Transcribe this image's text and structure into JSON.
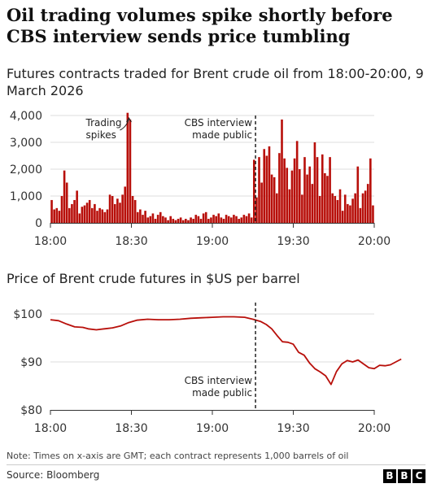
{
  "header": {
    "title": "Oil trading volumes spike shortly before CBS interview sends price tumbling"
  },
  "footer": {
    "note": "Note: Times on x-axis are GMT; each contract represents 1,000 barrels of oil",
    "source": "Source: Bloomberg",
    "logo": [
      "B",
      "B",
      "C"
    ]
  },
  "colors": {
    "bar": "#b80f0a",
    "line": "#b80f0a",
    "grid": "#dddddd",
    "event": "#222222"
  },
  "chart_data": [
    {
      "type": "bar",
      "title": "Futures contracts traded for Brent crude oil from 18:00-20:00, 9 March 2026",
      "xlabel": "",
      "ylabel": "",
      "x_unit": "minute",
      "x_range": [
        "18:00",
        "20:00"
      ],
      "xticks": [
        "18:00",
        "18:30",
        "19:00",
        "19:30",
        "20:00"
      ],
      "ylim": [
        0,
        4000
      ],
      "yticks": [
        0,
        1000,
        2000,
        3000,
        4000
      ],
      "ytick_labels": [
        "0",
        "1,000",
        "2,000",
        "3,000",
        "4,000"
      ],
      "grid": true,
      "values": [
        850,
        500,
        550,
        450,
        1000,
        1950,
        1500,
        550,
        700,
        850,
        1200,
        350,
        600,
        650,
        750,
        850,
        550,
        700,
        450,
        550,
        500,
        400,
        500,
        1050,
        1000,
        700,
        900,
        750,
        1050,
        1350,
        4100,
        3850,
        1000,
        850,
        400,
        500,
        300,
        450,
        200,
        250,
        350,
        150,
        300,
        400,
        250,
        200,
        100,
        250,
        150,
        100,
        150,
        200,
        100,
        150,
        100,
        200,
        150,
        300,
        250,
        150,
        350,
        400,
        150,
        200,
        300,
        250,
        350,
        200,
        150,
        300,
        250,
        200,
        300,
        250,
        150,
        200,
        300,
        250,
        350,
        200,
        2350,
        950,
        2450,
        1500,
        2750,
        2500,
        2850,
        1800,
        1700,
        1100,
        2600,
        3850,
        2400,
        2050,
        1250,
        1950,
        2400,
        3050,
        2000,
        1050,
        2450,
        1800,
        2100,
        1450,
        3000,
        2450,
        1000,
        2550,
        1850,
        1750,
        2450,
        1100,
        1000,
        850,
        1250,
        450,
        1050,
        700,
        650,
        900,
        1100,
        2100,
        550,
        1100,
        1200,
        1450,
        2400,
        650
      ],
      "annotations": [
        {
          "text": [
            "Trading",
            "spikes"
          ],
          "x": "18:30"
        },
        {
          "text": [
            "CBS interview",
            "made public"
          ],
          "x": "19:16"
        }
      ]
    },
    {
      "type": "line",
      "title": "Price of Brent crude futures in $US per barrel",
      "xlabel": "",
      "ylabel": "",
      "x_unit": "minute",
      "x_range": [
        "18:00",
        "20:00"
      ],
      "xticks": [
        "18:00",
        "18:30",
        "19:00",
        "19:30",
        "20:00"
      ],
      "ylim": [
        80,
        100
      ],
      "yticks": [
        80,
        90,
        100
      ],
      "ytick_labels": [
        "$80",
        "$90",
        "$100"
      ],
      "grid": true,
      "series": [
        {
          "points": [
            [
              0,
              98.8
            ],
            [
              3,
              98.6
            ],
            [
              6,
              97.9
            ],
            [
              9,
              97.3
            ],
            [
              12,
              97.2
            ],
            [
              14,
              96.9
            ],
            [
              17,
              96.7
            ],
            [
              20,
              96.9
            ],
            [
              23,
              97.1
            ],
            [
              26,
              97.5
            ],
            [
              29,
              98.2
            ],
            [
              32,
              98.7
            ],
            [
              36,
              98.9
            ],
            [
              40,
              98.8
            ],
            [
              44,
              98.8
            ],
            [
              48,
              98.9
            ],
            [
              52,
              99.1
            ],
            [
              56,
              99.2
            ],
            [
              60,
              99.3
            ],
            [
              64,
              99.4
            ],
            [
              68,
              99.4
            ],
            [
              72,
              99.3
            ],
            [
              75,
              98.9
            ],
            [
              78,
              98.4
            ],
            [
              80,
              97.8
            ],
            [
              82,
              96.9
            ],
            [
              84,
              95.5
            ],
            [
              86,
              94.2
            ],
            [
              88,
              94.1
            ],
            [
              90,
              93.7
            ],
            [
              92,
              92.0
            ],
            [
              94,
              91.4
            ],
            [
              96,
              89.8
            ],
            [
              98,
              88.6
            ],
            [
              100,
              87.9
            ],
            [
              102,
              87.1
            ],
            [
              104,
              85.3
            ],
            [
              106,
              88.0
            ],
            [
              108,
              89.6
            ],
            [
              110,
              90.3
            ],
            [
              112,
              90.0
            ],
            [
              114,
              90.4
            ],
            [
              116,
              89.6
            ],
            [
              118,
              88.8
            ],
            [
              120,
              88.6
            ],
            [
              122,
              89.3
            ],
            [
              124,
              89.2
            ],
            [
              126,
              89.4
            ],
            [
              128,
              90.0
            ],
            [
              130,
              90.6
            ]
          ]
        }
      ],
      "annotations": [
        {
          "text": [
            "CBS interview",
            "made public"
          ],
          "x": "19:16"
        }
      ]
    }
  ]
}
